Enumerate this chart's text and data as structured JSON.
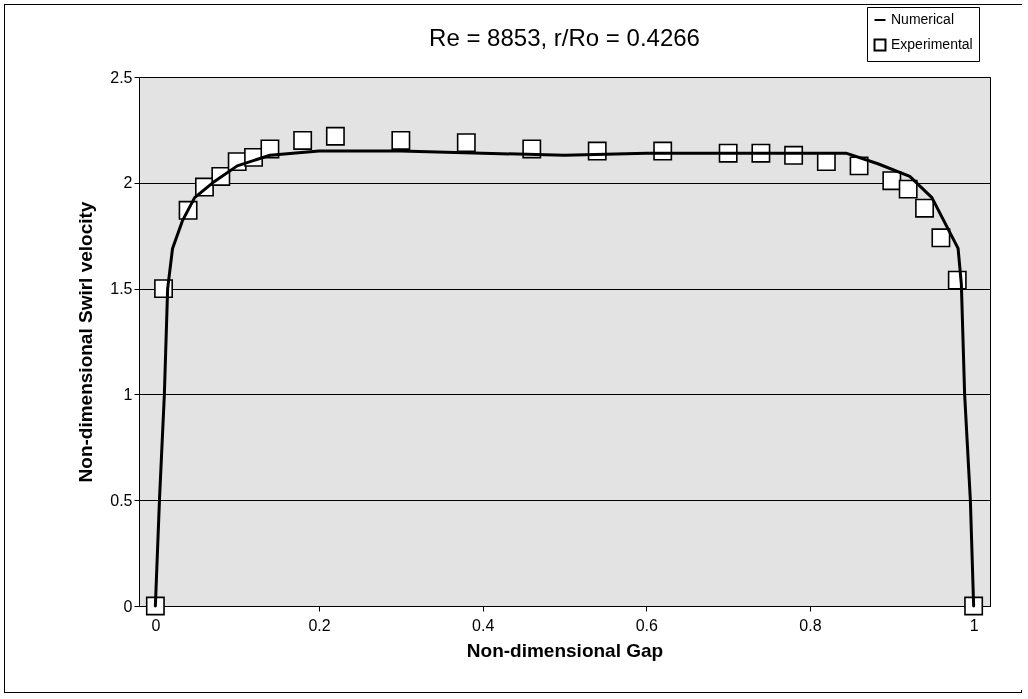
{
  "chart_data": {
    "type": "line",
    "title": "Re = 8853, r/Ro = 0.4266",
    "xlabel": "Non-dimensional Gap",
    "ylabel": "Non-dimensional Swirl velocity",
    "xlim": [
      -0.02,
      1.02
    ],
    "ylim": [
      0,
      2.5
    ],
    "xticks": [
      0,
      0.2,
      0.4,
      0.6,
      0.8,
      1
    ],
    "yticks": [
      0,
      0.5,
      1,
      1.5,
      2,
      2.5
    ],
    "grid": "y",
    "legend": "top right",
    "series": [
      {
        "name": "Numerical",
        "type": "line",
        "color": "#000000",
        "marker": "none",
        "x": [
          0,
          0.005,
          0.011,
          0.015,
          0.021,
          0.033,
          0.048,
          0.07,
          0.1,
          0.14,
          0.2,
          0.3,
          0.4,
          0.5,
          0.6,
          0.7,
          0.8,
          0.844,
          0.883,
          0.922,
          0.949,
          0.969,
          0.981,
          0.985,
          0.989,
          0.996,
          1
        ],
        "values": [
          0,
          0.5,
          1,
          1.5,
          1.69,
          1.82,
          1.93,
          2.0,
          2.08,
          2.13,
          2.15,
          2.15,
          2.14,
          2.13,
          2.14,
          2.14,
          2.14,
          2.14,
          2.09,
          2.03,
          1.93,
          1.78,
          1.69,
          1.52,
          1,
          0.5,
          0
        ]
      },
      {
        "name": "Experimental",
        "type": "scatter",
        "color": "#000000",
        "marker": "square",
        "x": [
          0,
          0.01,
          0.04,
          0.06,
          0.08,
          0.1,
          0.12,
          0.14,
          0.18,
          0.22,
          0.3,
          0.38,
          0.46,
          0.54,
          0.62,
          0.7,
          0.74,
          0.78,
          0.82,
          0.86,
          0.9,
          0.92,
          0.94,
          0.96,
          0.98,
          1
        ],
        "values": [
          0,
          1.5,
          1.87,
          1.98,
          2.03,
          2.1,
          2.12,
          2.16,
          2.2,
          2.22,
          2.2,
          2.19,
          2.16,
          2.15,
          2.15,
          2.14,
          2.14,
          2.13,
          2.1,
          2.08,
          2.01,
          1.97,
          1.88,
          1.74,
          1.54,
          0
        ]
      }
    ]
  }
}
